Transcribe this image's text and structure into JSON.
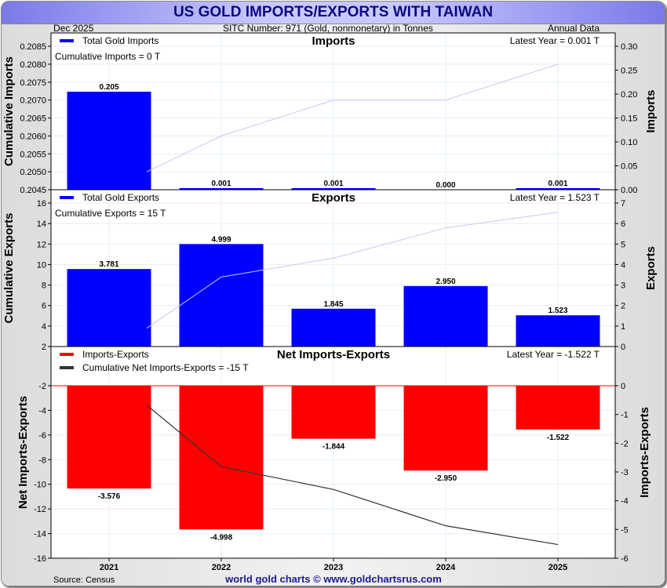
{
  "header": {
    "title": "US GOLD IMPORTS/EXPORTS WITH TAIWAN",
    "date": "Dec  2025",
    "sitc": "SITC Number: 971 (Gold, nonmonetary) in Tonnes",
    "frequency": "Annual Data"
  },
  "footer": {
    "source": "Source: Census",
    "credit": "world gold charts © www.goldchartsrus.com"
  },
  "colors": {
    "imports_bar": "#0000ff",
    "exports_bar": "#0000ff",
    "net_bar": "#ff0000",
    "cum_line_light": "#c8c8f0",
    "cum_line_net": "#333333",
    "grid": "#e4eef8",
    "title_text": "#0a0a80"
  },
  "chart_data": [
    {
      "type": "bar",
      "title": "Imports",
      "legend": [
        "Total Gold Imports"
      ],
      "legend_position": "top-left",
      "annotation_left": "Cumulative Imports = 0 T",
      "annotation_right": "Latest Year = 0.001 T",
      "categories": [
        "2021",
        "2022",
        "2023",
        "2024",
        "2025"
      ],
      "series": [
        {
          "name": "Total Gold Imports",
          "axis": "right",
          "values": [
            0.205,
            0.001,
            0.001,
            0.0,
            0.001
          ],
          "labels": [
            "0.205",
            "0.001",
            "0.001",
            "0.000",
            "0.001"
          ]
        },
        {
          "name": "Cumulative Imports",
          "axis": "left",
          "type": "line",
          "values": [
            0.205,
            0.206,
            0.207,
            0.207,
            0.208
          ]
        }
      ],
      "ylabel_left": "Cumulative Imports",
      "ylabel_right": "Imports",
      "ylim_left": [
        0.2045,
        0.2085
      ],
      "yticks_left": [
        "0.2045",
        "0.2050",
        "0.2055",
        "0.2060",
        "0.2065",
        "0.2070",
        "0.2075",
        "0.2080",
        "0.2085"
      ],
      "ylim_right": [
        0,
        0.3
      ],
      "yticks_right": [
        "0.00",
        "0.05",
        "0.10",
        "0.15",
        "0.20",
        "0.25",
        "0.30"
      ],
      "grid": true
    },
    {
      "type": "bar",
      "title": "Exports",
      "legend": [
        "Total Gold Exports"
      ],
      "legend_position": "top-left",
      "annotation_left": "Cumulative Exports = 15 T",
      "annotation_right": "Latest Year = 1.523 T",
      "categories": [
        "2021",
        "2022",
        "2023",
        "2024",
        "2025"
      ],
      "series": [
        {
          "name": "Total Gold Exports",
          "axis": "right",
          "values": [
            3.781,
            4.999,
            1.845,
            2.95,
            1.523
          ],
          "labels": [
            "3.781",
            "4.999",
            "1.845",
            "2.950",
            "1.523"
          ]
        },
        {
          "name": "Cumulative Exports",
          "axis": "left",
          "type": "line",
          "values": [
            3.781,
            8.78,
            10.625,
            13.575,
            15.098
          ]
        }
      ],
      "ylabel_left": "Cumulative Exports",
      "ylabel_right": "Exports",
      "ylim_left": [
        2,
        16
      ],
      "yticks_left": [
        "2",
        "4",
        "6",
        "8",
        "10",
        "12",
        "14",
        "16"
      ],
      "ylim_right": [
        0,
        7
      ],
      "yticks_right": [
        "0",
        "1",
        "2",
        "3",
        "4",
        "5",
        "6",
        "7"
      ],
      "grid": true
    },
    {
      "type": "bar",
      "title": "Net Imports-Exports",
      "legend": [
        "Imports-Exports",
        "Cumulative Net Imports-Exports = -15 T"
      ],
      "legend_position": "top-left",
      "annotation_right": "Latest Year = -1.522 T",
      "categories": [
        "2021",
        "2022",
        "2023",
        "2024",
        "2025"
      ],
      "series": [
        {
          "name": "Imports-Exports",
          "axis": "right",
          "values": [
            -3.576,
            -4.998,
            -1.844,
            -2.95,
            -1.522
          ],
          "labels": [
            "-3.576",
            "-4.998",
            "-1.844",
            "-2.950",
            "-1.522"
          ]
        },
        {
          "name": "Cumulative Net Imports-Exports",
          "axis": "left",
          "type": "line",
          "values": [
            -3.576,
            -8.574,
            -10.418,
            -13.368,
            -14.89
          ]
        }
      ],
      "ylabel_left": "Net Imports-Exports",
      "ylabel_right": "Imports-Exports",
      "ylim_left": [
        -16,
        -2
      ],
      "yticks_left": [
        "-16",
        "-14",
        "-12",
        "-10",
        "-8",
        "-6",
        "-4",
        "-2"
      ],
      "ylim_right": [
        -6,
        0
      ],
      "yticks_right": [
        "-6",
        "-5",
        "-4",
        "-3",
        "-2",
        "-1",
        "0"
      ],
      "xticks": [
        "2021",
        "2022",
        "2023",
        "2024",
        "2025"
      ],
      "grid": true
    }
  ]
}
